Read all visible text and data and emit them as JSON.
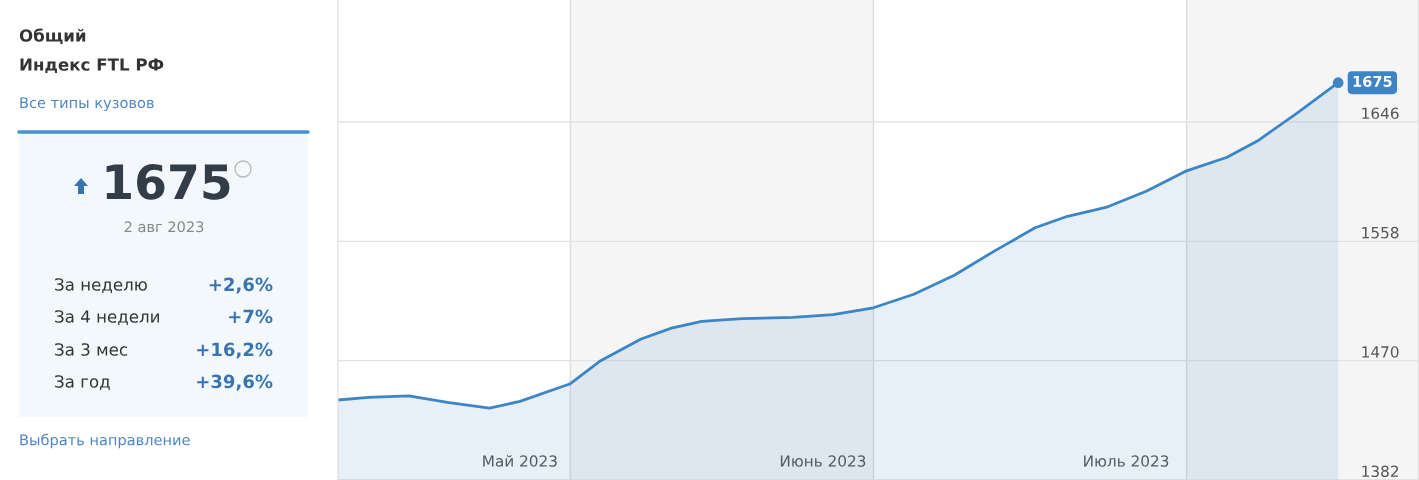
{
  "chart_data": [
    {
      "type": "other",
      "title": "Общий",
      "subtitle": "Индекс FTL РФ",
      "annotations": [
        "Все типы кузовов",
        "1675",
        "2 авг 2023",
        "За неделю",
        "+2,6%",
        "За 4 недели",
        "+7%",
        "За 3 мес",
        "+16,2%",
        "За год",
        "+39,6%",
        "Выбрать направление"
      ]
    },
    {
      "type": "area",
      "x": [
        "2023-04-25",
        "2023-04-28",
        "2023-05-02",
        "2023-05-06",
        "2023-05-10",
        "2023-05-13",
        "2023-05-18",
        "2023-05-21",
        "2023-05-25",
        "2023-05-28",
        "2023-05-31",
        "2023-06-04",
        "2023-06-09",
        "2023-06-13",
        "2023-06-17",
        "2023-06-21",
        "2023-06-25",
        "2023-06-29",
        "2023-07-03",
        "2023-07-06",
        "2023-07-10",
        "2023-07-14",
        "2023-07-18",
        "2023-07-22",
        "2023-07-25",
        "2023-07-29",
        "2023-08-02"
      ],
      "series": [
        {
          "color": "#3d85c6",
          "values": [
            1441,
            1443,
            1444,
            1439,
            1435,
            1440,
            1453,
            1470,
            1486,
            1494,
            1499,
            1501,
            1502,
            1504,
            1509,
            1519,
            1533,
            1551,
            1568,
            1576,
            1583,
            1595,
            1610,
            1620,
            1632,
            1653,
            1675
          ],
          "value_labels": [
            null,
            null,
            null,
            null,
            null,
            null,
            null,
            null,
            null,
            null,
            null,
            null,
            null,
            null,
            null,
            null,
            null,
            null,
            null,
            null,
            null,
            null,
            null,
            null,
            null,
            null,
            "1675"
          ]
        }
      ],
      "xlim": [
        "2023-04-25",
        "2023-08-10"
      ],
      "ylim": [
        1382,
        1736
      ],
      "yticks": [
        1382,
        1470,
        1558,
        1646
      ],
      "xticks": [
        {
          "value": "2023-05-13",
          "label": "Май 2023"
        },
        {
          "value": "2023-06-12",
          "label": "Июнь 2023"
        },
        {
          "value": "2023-07-12",
          "label": "Июль 2023"
        }
      ],
      "grid": "y",
      "bands": [
        {
          "axis": "x",
          "from": "2023-05-18",
          "to": "2023-06-17",
          "color": "#f5f5f5"
        },
        {
          "axis": "x",
          "from": "2023-07-18",
          "to": "2023-08-10",
          "color": "#f5f5f5"
        }
      ]
    }
  ]
}
